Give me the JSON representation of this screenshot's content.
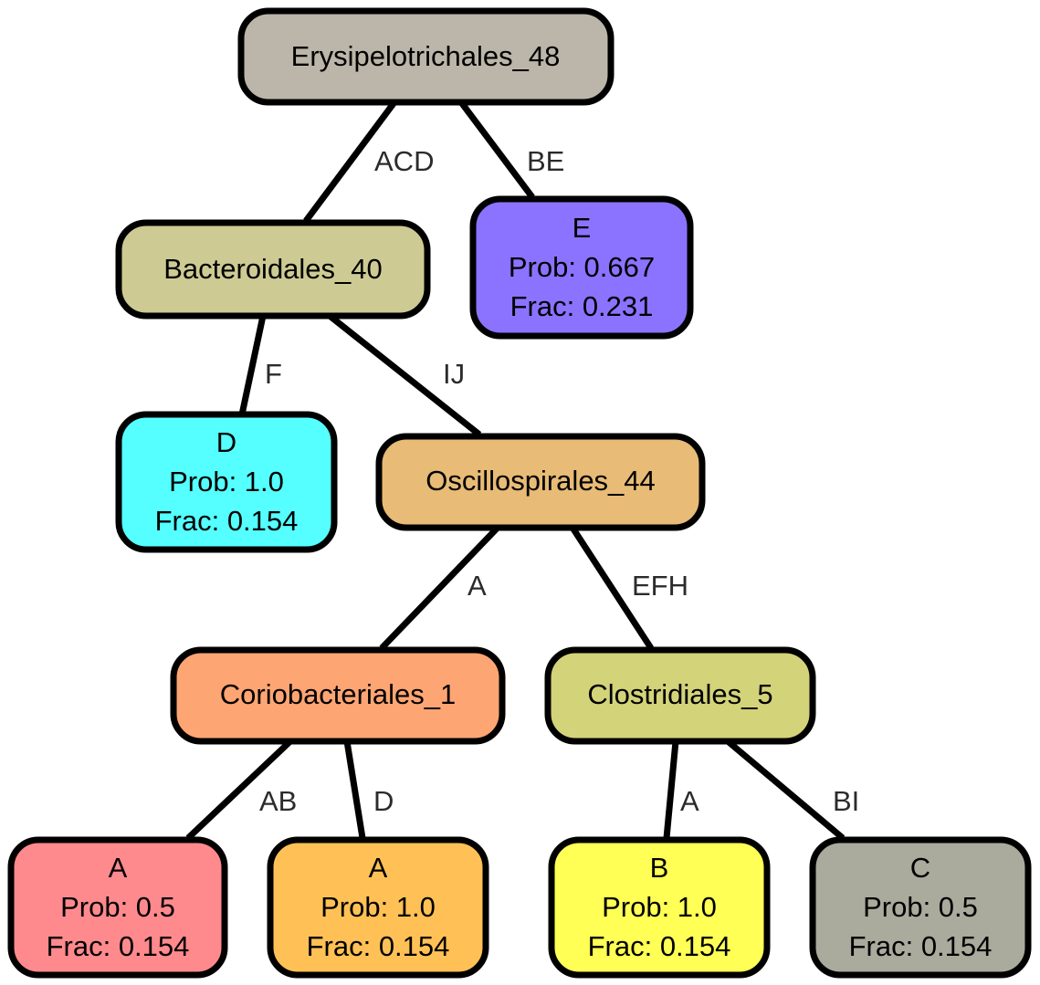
{
  "nodes": {
    "root": {
      "label": "Erysipelotrichales_48",
      "color": "#bcb6aa"
    },
    "bacteroidales": {
      "label": "Bacteroidales_40",
      "color": "#cdcb93"
    },
    "leaf_e": {
      "label": "E",
      "prob": "Prob: 0.667",
      "frac": "Frac: 0.231",
      "color": "#8b73ff"
    },
    "leaf_d": {
      "label": "D",
      "prob": "Prob: 1.0",
      "frac": "Frac: 0.154",
      "color": "#55ffff"
    },
    "oscillospirales": {
      "label": "Oscillospirales_44",
      "color": "#e8bb76"
    },
    "coriobacteriales": {
      "label": "Coriobacteriales_1",
      "color": "#fea574"
    },
    "clostridiales": {
      "label": "Clostridiales_5",
      "color": "#d3d37a"
    },
    "leaf_a1": {
      "label": "A",
      "prob": "Prob: 0.5",
      "frac": "Frac: 0.154",
      "color": "#ff8a8d"
    },
    "leaf_a2": {
      "label": "A",
      "prob": "Prob: 1.0",
      "frac": "Frac: 0.154",
      "color": "#ffc155"
    },
    "leaf_b": {
      "label": "B",
      "prob": "Prob: 1.0",
      "frac": "Frac: 0.154",
      "color": "#ffff55"
    },
    "leaf_c": {
      "label": "C",
      "prob": "Prob: 0.5",
      "frac": "Frac: 0.154",
      "color": "#aaaa9d"
    }
  },
  "edges": {
    "root_bacteroidales": "ACD",
    "root_e": "BE",
    "bacteroidales_d": "F",
    "bacteroidales_oscillospirales": "IJ",
    "oscillospirales_coriobacteriales": "A",
    "oscillospirales_clostridiales": "EFH",
    "coriobacteriales_a1": "AB",
    "coriobacteriales_a2": "D",
    "clostridiales_b": "A",
    "clostridiales_c": "BI"
  }
}
